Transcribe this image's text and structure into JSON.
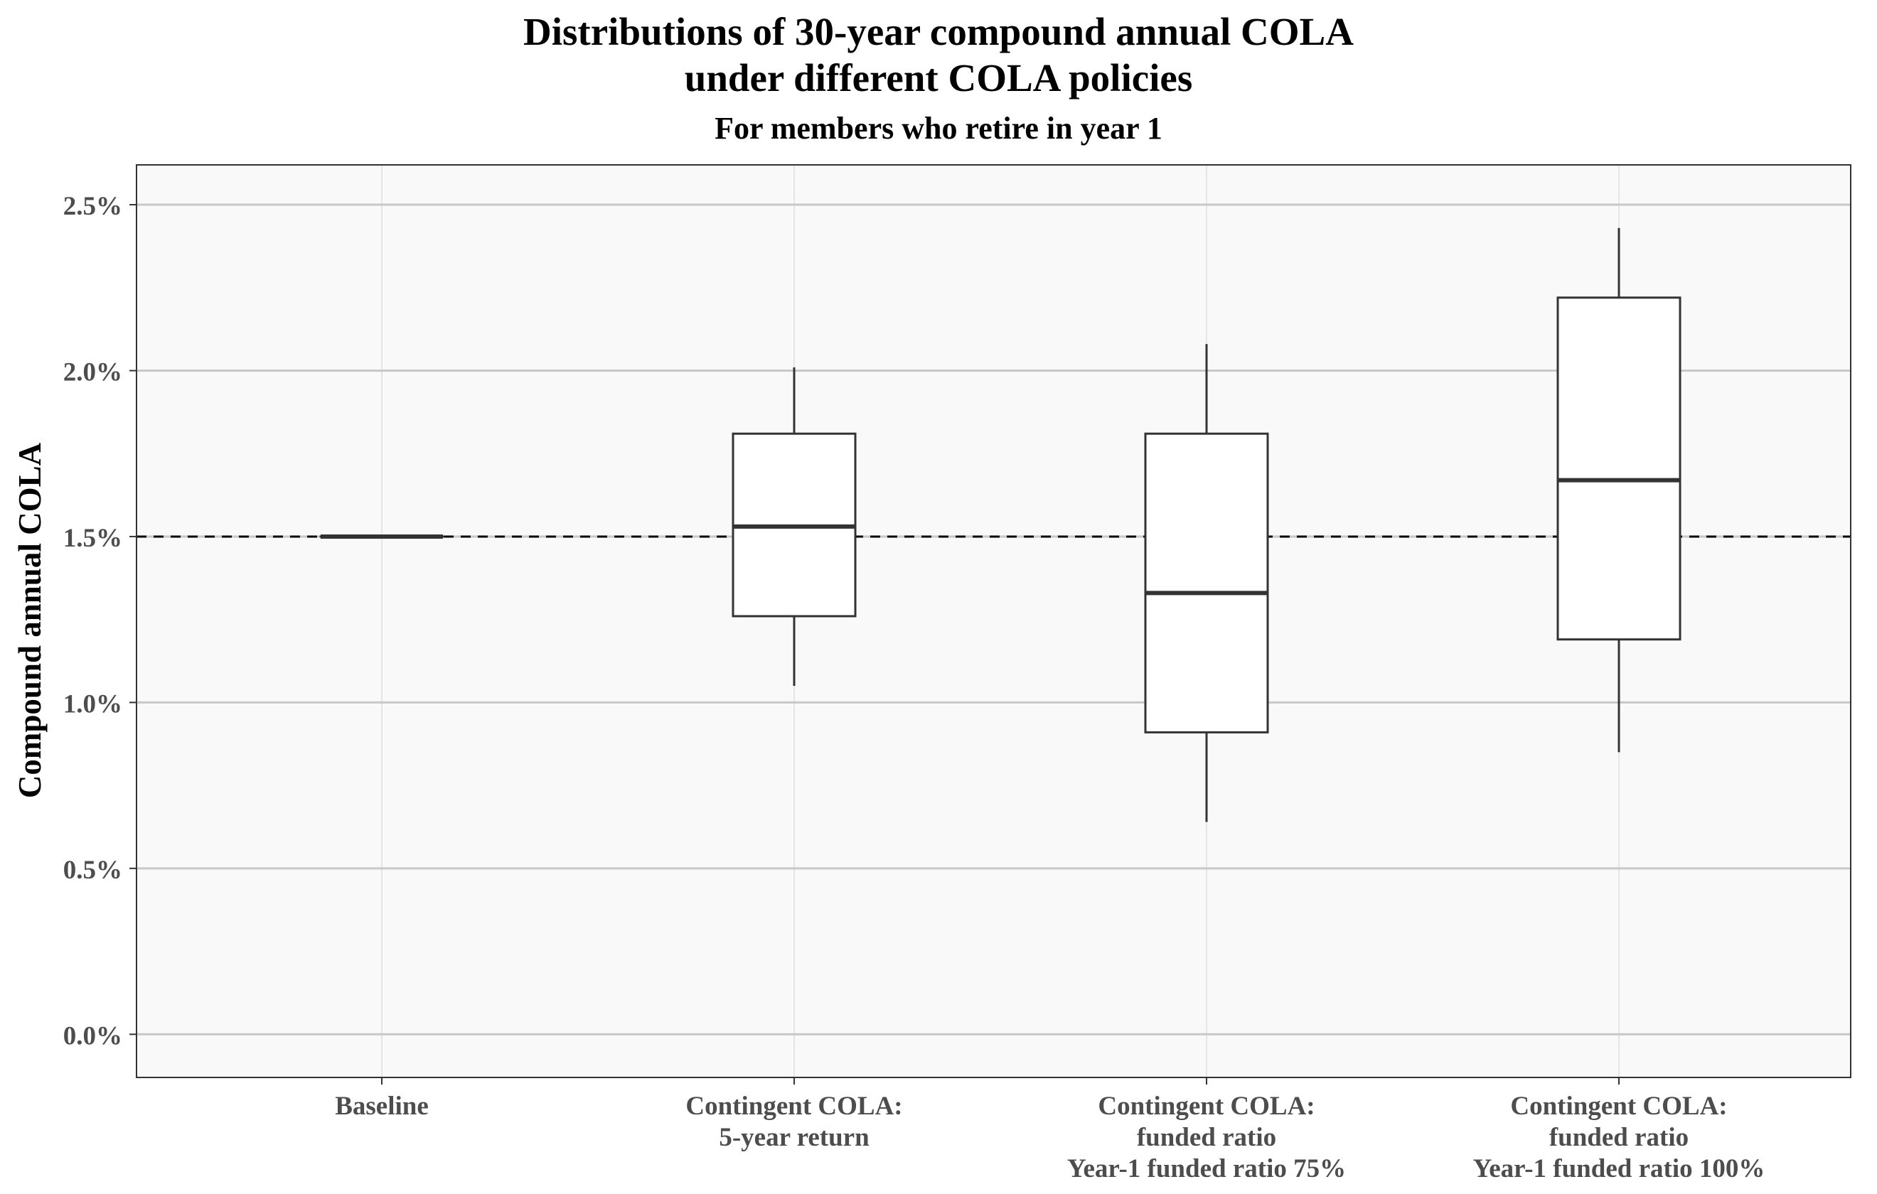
{
  "chart_data": {
    "type": "box",
    "title": [
      "Distributions of 30-year compound annual COLA",
      "under different COLA policies"
    ],
    "subtitle": "For members who retire in year 1",
    "xlabel": "",
    "ylabel": "Compound annual COLA",
    "ylim": [
      -0.13,
      2.62
    ],
    "yticks": [
      0.0,
      0.5,
      1.0,
      1.5,
      2.0,
      2.5
    ],
    "ytick_labels": [
      "0.0%",
      "0.5%",
      "1.0%",
      "1.5%",
      "2.0%",
      "2.5%"
    ],
    "grid": true,
    "reference_line": {
      "y": 1.5,
      "style": "dashed"
    },
    "categories": [
      [
        "Baseline"
      ],
      [
        "Contingent COLA:",
        "5-year return"
      ],
      [
        "Contingent COLA:",
        "funded ratio",
        "Year-1 funded ratio 75%"
      ],
      [
        "Contingent COLA:",
        "funded ratio",
        "Year-1 funded ratio 100%"
      ]
    ],
    "boxes": [
      {
        "min": 1.5,
        "q1": 1.5,
        "median": 1.5,
        "q3": 1.5,
        "max": 1.5
      },
      {
        "min": 1.05,
        "q1": 1.26,
        "median": 1.53,
        "q3": 1.81,
        "max": 2.01
      },
      {
        "min": 0.64,
        "q1": 0.91,
        "median": 1.33,
        "q3": 1.81,
        "max": 2.08
      },
      {
        "min": 0.85,
        "q1": 1.19,
        "median": 1.67,
        "q3": 2.22,
        "max": 2.43
      }
    ],
    "colors": {
      "panel_bg": "#f9f9f9",
      "grid_major": "#c8c8c8",
      "grid_minor": "#e6e6e6",
      "box_fill": "#ffffff",
      "box_stroke": "#333333",
      "reference": "#000000",
      "axis_text": "#4d4d4d"
    }
  }
}
